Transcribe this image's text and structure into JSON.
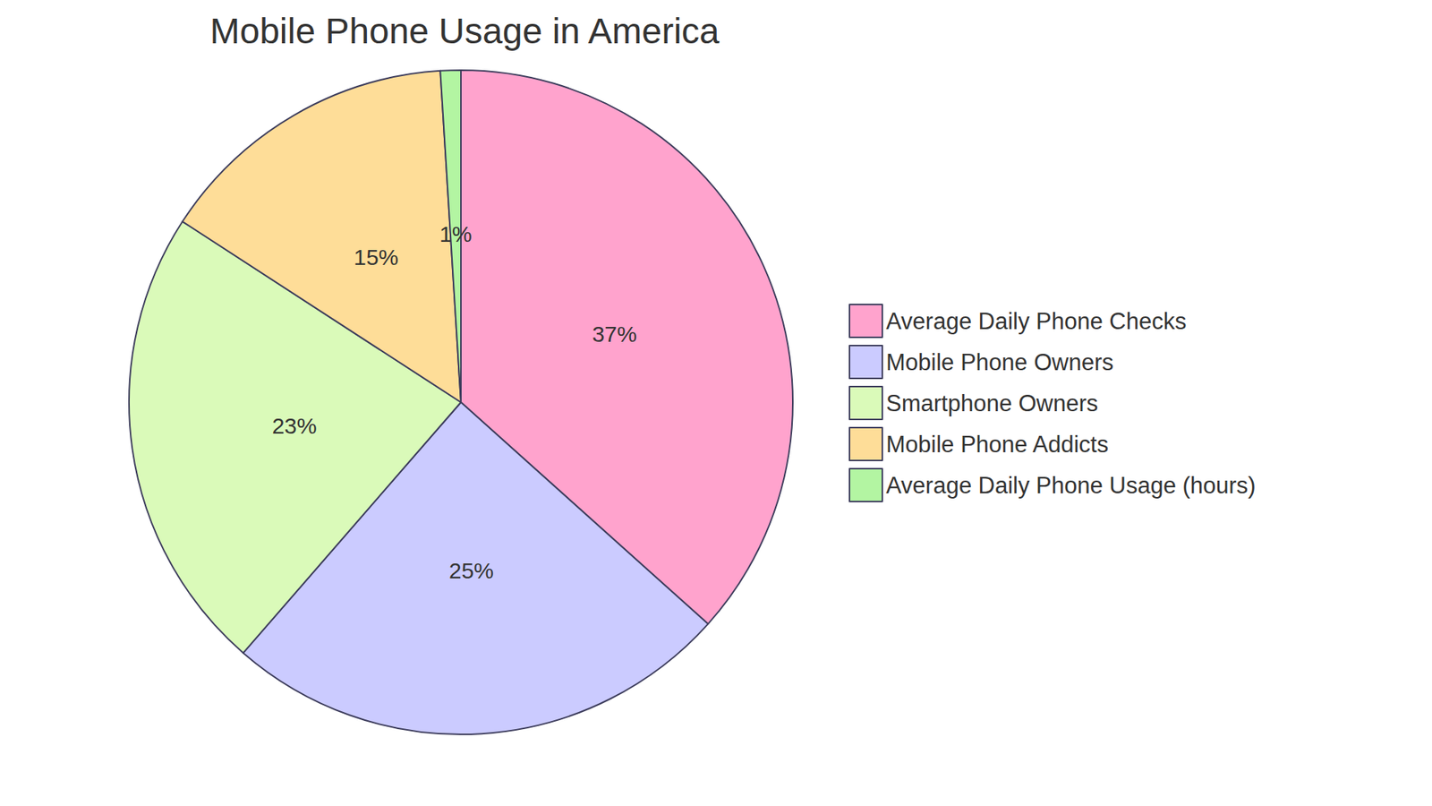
{
  "chart_data": {
    "type": "pie",
    "title": "Mobile Phone Usage in America",
    "categories": [
      "Average Daily Phone Checks",
      "Mobile Phone Owners",
      "Smartphone Owners",
      "Mobile Phone Addicts",
      "Average Daily Phone Usage (hours)"
    ],
    "values": [
      37,
      25,
      23,
      15,
      1
    ],
    "value_labels": [
      "37%",
      "25%",
      "23%",
      "15%",
      "1%"
    ],
    "colors": [
      "#ffa3cd",
      "#cbcbff",
      "#dafab9",
      "#fedd98",
      "#b3f5a2"
    ],
    "data_labels": true,
    "legend": "right"
  }
}
